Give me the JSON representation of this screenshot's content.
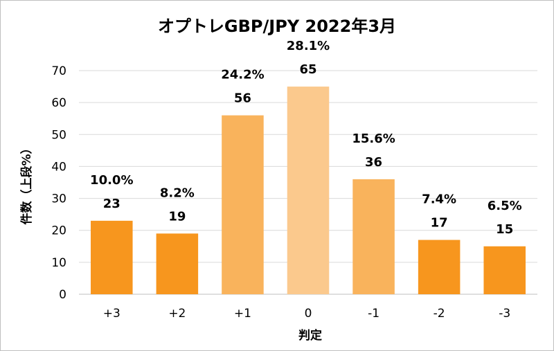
{
  "chart_data": {
    "type": "bar",
    "title": "オプトレGBP/JPY 2022年3月",
    "xlabel": "判定",
    "ylabel": "件数（上段%）",
    "categories": [
      "+3",
      "+2",
      "+1",
      "0",
      "-1",
      "-2",
      "-3"
    ],
    "values": [
      23,
      19,
      56,
      65,
      36,
      17,
      15
    ],
    "percent_labels": [
      "10.0%",
      "8.2%",
      "24.2%",
      "28.1%",
      "15.6%",
      "7.4%",
      "6.5%"
    ],
    "bar_colors": [
      "#f7961e",
      "#f7961e",
      "#f9b35c",
      "#fbc98d",
      "#f9b35c",
      "#f7961e",
      "#f7961e"
    ],
    "ylim": [
      0,
      70
    ],
    "yticks": [
      0,
      10,
      20,
      30,
      40,
      50,
      60,
      70
    ],
    "grid": true,
    "legend": "none"
  }
}
